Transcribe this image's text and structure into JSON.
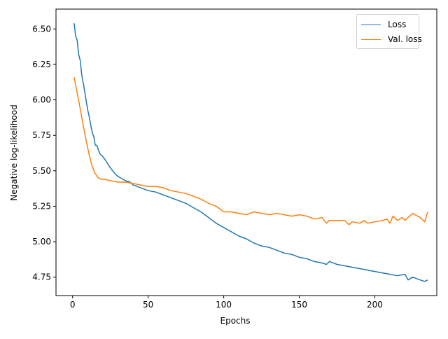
{
  "chart_data": {
    "type": "line",
    "xlabel": "Epochs",
    "ylabel": "Negative log-likelihood",
    "xlim": [
      -11,
      241
    ],
    "ylim": [
      4.62,
      6.64
    ],
    "xticks": [
      0,
      50,
      100,
      150,
      200
    ],
    "yticks": [
      4.75,
      5.0,
      5.25,
      5.5,
      5.75,
      6.0,
      6.25,
      6.5
    ],
    "ytick_labels": [
      "4.75",
      "5.00",
      "5.25",
      "5.50",
      "5.75",
      "6.00",
      "6.25",
      "6.50"
    ],
    "legend_position": "top-right",
    "grid": false,
    "series": [
      {
        "name": "Loss",
        "color": "#1f77b4",
        "x": [
          1,
          2,
          3,
          4,
          5,
          6,
          7,
          8,
          9,
          10,
          11,
          12,
          13,
          14,
          15,
          16,
          17,
          18,
          19,
          20,
          22,
          25,
          28,
          30,
          35,
          38,
          40,
          45,
          50,
          55,
          60,
          65,
          70,
          75,
          80,
          85,
          90,
          95,
          100,
          105,
          110,
          115,
          120,
          125,
          130,
          135,
          140,
          145,
          150,
          155,
          160,
          165,
          168,
          170,
          175,
          180,
          185,
          190,
          195,
          200,
          205,
          210,
          215,
          220,
          222,
          225,
          230,
          233,
          235
        ],
        "values": [
          6.54,
          6.45,
          6.42,
          6.32,
          6.28,
          6.18,
          6.12,
          6.06,
          5.99,
          5.93,
          5.88,
          5.82,
          5.77,
          5.74,
          5.68,
          5.68,
          5.65,
          5.62,
          5.61,
          5.6,
          5.57,
          5.52,
          5.48,
          5.46,
          5.43,
          5.42,
          5.4,
          5.38,
          5.36,
          5.35,
          5.33,
          5.31,
          5.29,
          5.27,
          5.24,
          5.21,
          5.17,
          5.13,
          5.1,
          5.07,
          5.04,
          5.02,
          4.99,
          4.97,
          4.96,
          4.94,
          4.92,
          4.91,
          4.89,
          4.88,
          4.86,
          4.85,
          4.84,
          4.86,
          4.84,
          4.83,
          4.82,
          4.81,
          4.8,
          4.79,
          4.78,
          4.77,
          4.76,
          4.77,
          4.73,
          4.75,
          4.73,
          4.72,
          4.73
        ]
      },
      {
        "name": "Val. loss",
        "color": "#ff7f0e",
        "x": [
          1,
          3,
          5,
          7,
          9,
          11,
          13,
          15,
          17,
          19,
          21,
          25,
          30,
          35,
          40,
          45,
          50,
          55,
          60,
          65,
          70,
          75,
          80,
          85,
          90,
          95,
          100,
          105,
          110,
          115,
          120,
          125,
          130,
          135,
          140,
          145,
          150,
          155,
          160,
          165,
          168,
          170,
          175,
          180,
          183,
          185,
          190,
          193,
          195,
          200,
          205,
          208,
          210,
          212,
          215,
          218,
          220,
          225,
          230,
          233,
          235
        ],
        "values": [
          6.16,
          6.05,
          5.94,
          5.82,
          5.71,
          5.61,
          5.53,
          5.48,
          5.45,
          5.44,
          5.44,
          5.43,
          5.42,
          5.42,
          5.41,
          5.4,
          5.39,
          5.39,
          5.38,
          5.36,
          5.35,
          5.34,
          5.32,
          5.3,
          5.27,
          5.25,
          5.21,
          5.21,
          5.2,
          5.19,
          5.21,
          5.2,
          5.19,
          5.2,
          5.19,
          5.18,
          5.19,
          5.18,
          5.16,
          5.17,
          5.13,
          5.15,
          5.15,
          5.15,
          5.12,
          5.14,
          5.13,
          5.15,
          5.13,
          5.14,
          5.15,
          5.16,
          5.13,
          5.18,
          5.15,
          5.17,
          5.15,
          5.2,
          5.17,
          5.14,
          5.21
        ]
      }
    ]
  }
}
